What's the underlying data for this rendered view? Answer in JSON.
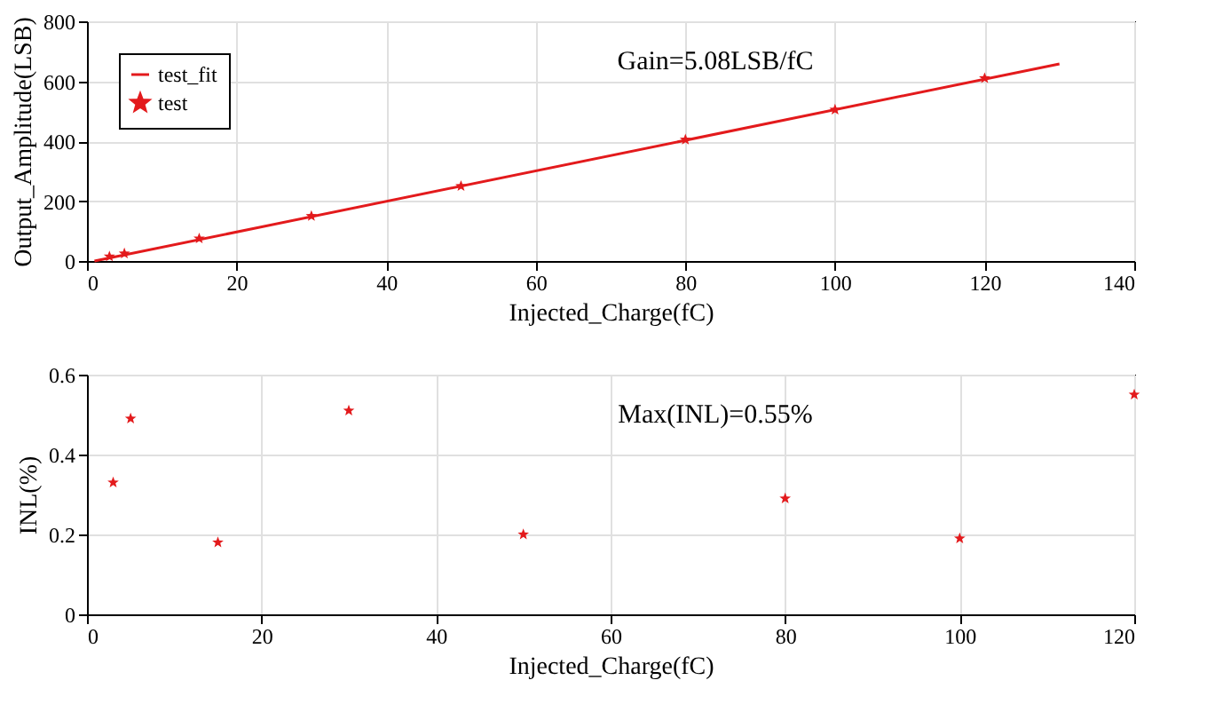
{
  "chart_data": [
    {
      "type": "scatter",
      "xlabel": "Injected_Charge(fC)",
      "ylabel": "Output_Amplitude(LSB)",
      "annotations": [
        "Gain=5.08LSB/fC"
      ],
      "xlim": [
        0,
        140
      ],
      "ylim": [
        0,
        800
      ],
      "xticks": [
        0,
        20,
        40,
        60,
        80,
        100,
        120,
        140
      ],
      "yticks": [
        0,
        200,
        400,
        600,
        800
      ],
      "grid": true,
      "legend": "top left",
      "series": [
        {
          "name": "test_fit",
          "type": "line",
          "color": "#e31a1c",
          "line_style": "solid",
          "x": [
            1,
            130
          ],
          "values": [
            0,
            658
          ]
        },
        {
          "name": "test",
          "type": "scatter",
          "color": "#e31a1c",
          "marker": "star",
          "x": [
            3,
            5,
            15,
            30,
            50,
            80,
            100,
            120
          ],
          "values": [
            15,
            25,
            75,
            150,
            250,
            405,
            505,
            610
          ]
        }
      ]
    },
    {
      "type": "scatter",
      "xlabel": "Injected_Charge(fC)",
      "ylabel": "INL(%)",
      "annotations": [
        "Max(INL)=0.55%"
      ],
      "xlim": [
        0,
        120
      ],
      "ylim": [
        0,
        0.6
      ],
      "xticks": [
        0,
        20,
        40,
        60,
        80,
        100,
        120
      ],
      "yticks": [
        0,
        0.2,
        0.4,
        0.6
      ],
      "grid": true,
      "marker": "star",
      "series": [
        {
          "color": "#e31a1c",
          "x": [
            3,
            5,
            15,
            30,
            50,
            80,
            100,
            120
          ],
          "values": [
            0.33,
            0.49,
            0.18,
            0.51,
            0.2,
            0.29,
            0.19,
            0.55
          ]
        }
      ]
    }
  ]
}
